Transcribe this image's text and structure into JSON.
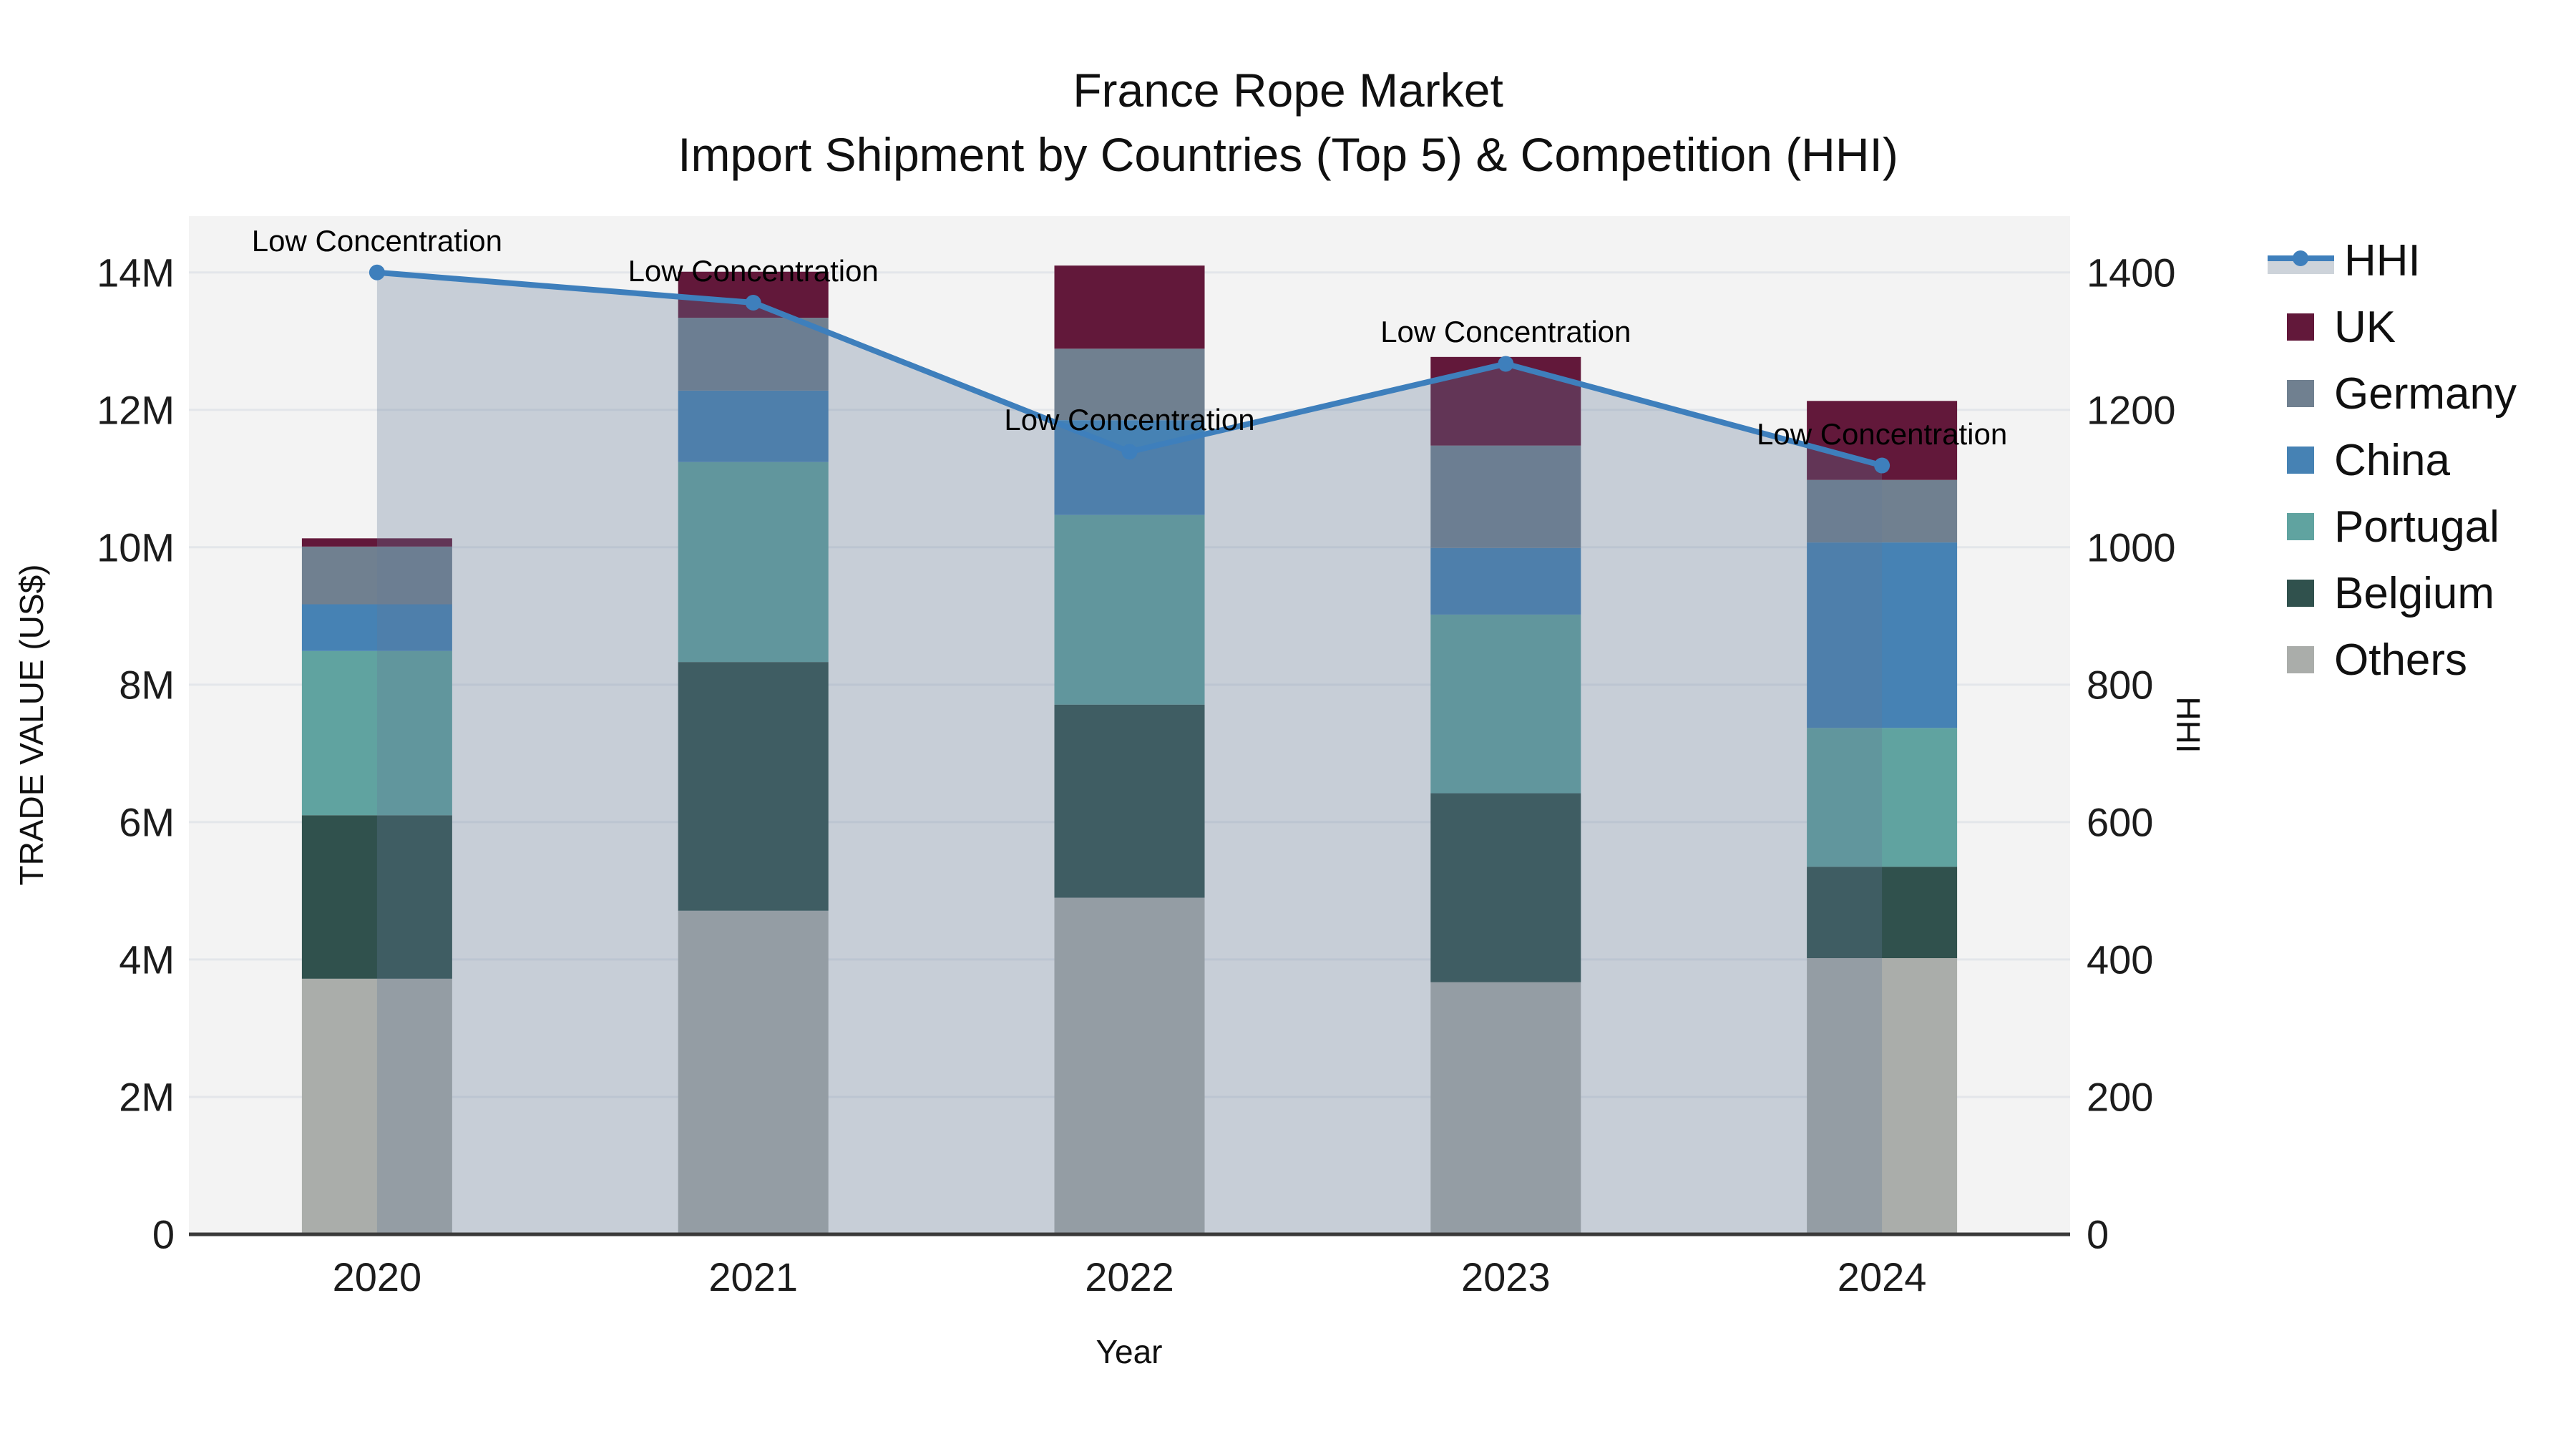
{
  "title": {
    "line1": "France Rope Market",
    "line2": "Import Shipment by Countries (Top 5) & Competition (HHI)"
  },
  "axes": {
    "x_title": "Year",
    "y_left_title": "TRADE VALUE (US$)",
    "y_right_title": "HHI",
    "y_left_tick_labels": [
      "0",
      "2M",
      "4M",
      "6M",
      "8M",
      "10M",
      "12M",
      "14M"
    ],
    "y_left_tick_values": [
      0,
      2,
      4,
      6,
      8,
      10,
      12,
      14
    ],
    "y_right_tick_labels": [
      "0",
      "200",
      "400",
      "600",
      "800",
      "1000",
      "1200",
      "1400"
    ],
    "y_right_tick_values": [
      0,
      200,
      400,
      600,
      800,
      1000,
      1200,
      1400
    ]
  },
  "legend": [
    {
      "label": "HHI",
      "type": "line",
      "color": "#3E7FBC"
    },
    {
      "label": "UK",
      "type": "square",
      "color": "#62183A"
    },
    {
      "label": "Germany",
      "type": "square",
      "color": "#708090"
    },
    {
      "label": "China",
      "type": "square",
      "color": "#4682B4"
    },
    {
      "label": "Portugal",
      "type": "square",
      "color": "#60A3A0"
    },
    {
      "label": "Belgium",
      "type": "square",
      "color": "#30514D"
    },
    {
      "label": "Others",
      "type": "square",
      "color": "#AAADAA"
    }
  ],
  "chart_data": {
    "type": "combo_stacked_bar_line",
    "title": "France Rope Market — Import Shipment by Countries (Top 5) & Competition (HHI)",
    "xlabel": "Year",
    "ylabel_left": "TRADE VALUE (US$)",
    "ylabel_right": "HHI",
    "categories": [
      "2020",
      "2021",
      "2022",
      "2023",
      "2024"
    ],
    "unit_left": "US$ millions",
    "series": [
      {
        "name": "Others",
        "color": "#AAADAA",
        "values": [
          3.72,
          4.71,
          4.9,
          3.67,
          4.02
        ]
      },
      {
        "name": "Belgium",
        "color": "#30514D",
        "values": [
          2.38,
          3.62,
          2.81,
          2.75,
          1.33
        ]
      },
      {
        "name": "Portugal",
        "color": "#60A3A0",
        "values": [
          2.39,
          2.91,
          2.76,
          2.6,
          2.02
        ]
      },
      {
        "name": "China",
        "color": "#4682B4",
        "values": [
          0.68,
          1.04,
          1.38,
          0.97,
          2.7
        ]
      },
      {
        "name": "Germany",
        "color": "#708090",
        "values": [
          0.84,
          1.06,
          1.04,
          1.49,
          0.91
        ]
      },
      {
        "name": "UK",
        "color": "#62183A",
        "values": [
          0.12,
          0.67,
          1.21,
          1.29,
          1.15
        ]
      }
    ],
    "stack_totals": [
      10.13,
      14.01,
      14.1,
      12.77,
      12.13
    ],
    "line_series": {
      "name": "HHI",
      "axis": "right",
      "color": "#3E7FBC",
      "area_fill": "rgba(100,124,152,0.30)",
      "marker": "circle",
      "values": [
        1400,
        1356,
        1139,
        1267,
        1119
      ]
    },
    "annotations": [
      {
        "text": "Low Concentration",
        "category_index": 0
      },
      {
        "text": "Low Concentration",
        "category_index": 1
      },
      {
        "text": "Low Concentration",
        "category_index": 2
      },
      {
        "text": "Low Concentration",
        "category_index": 3
      },
      {
        "text": "Low Concentration",
        "category_index": 4
      }
    ],
    "ylim_left": [
      0,
      14.82
    ],
    "ylim_right": [
      0,
      1482
    ],
    "grid": true,
    "legend_position": "right",
    "plot_background": "#F3F3F3",
    "gridline_color": "#E3E6EA",
    "zeroline_color": "#3A3A3A"
  }
}
